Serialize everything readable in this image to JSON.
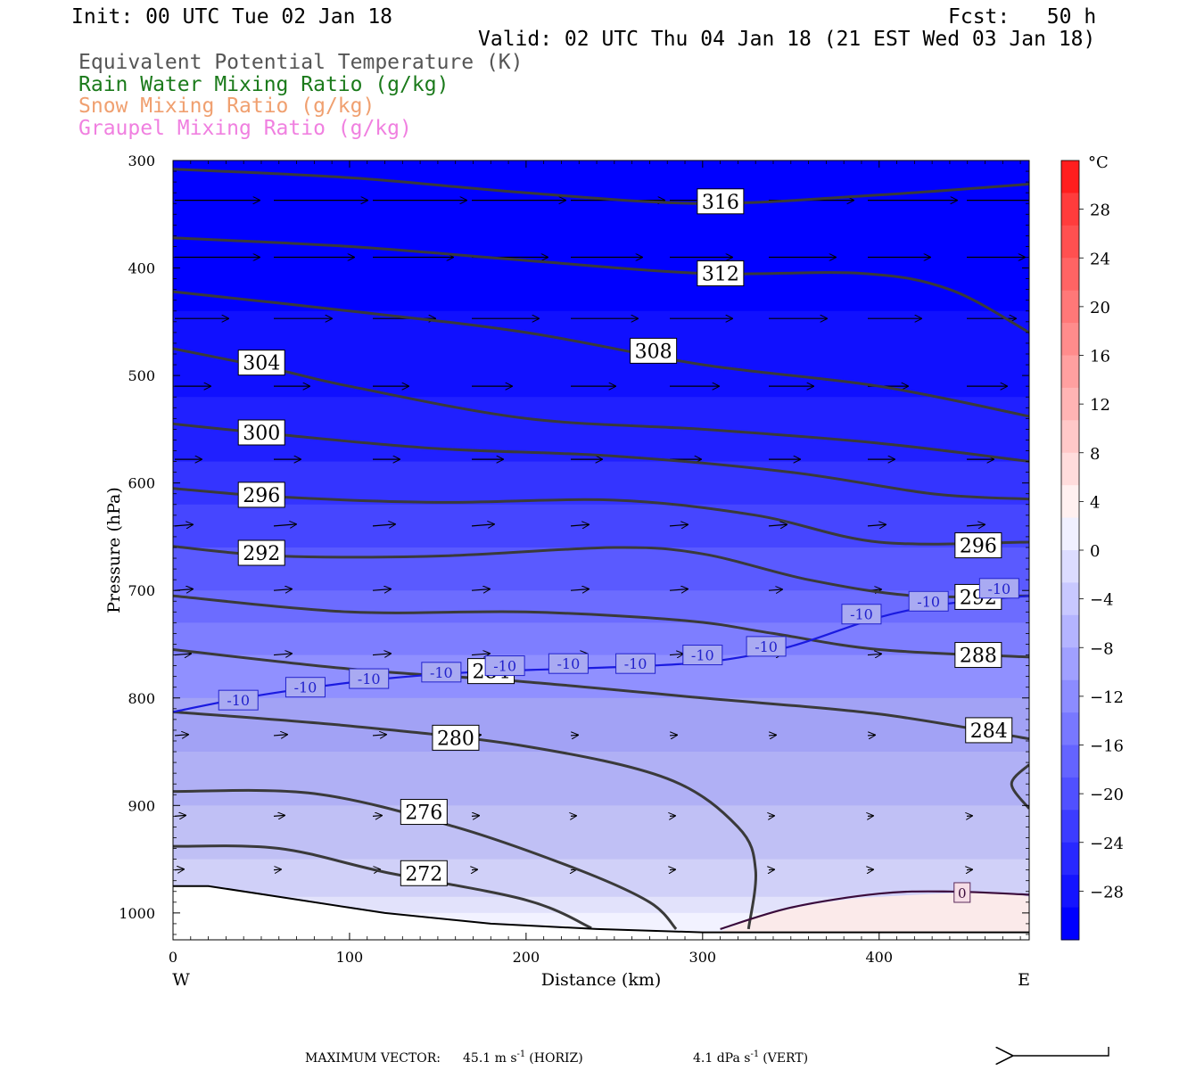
{
  "header": {
    "init": "Init: 00 UTC Tue 02 Jan 18",
    "fcst": "Fcst:   50 h",
    "valid": "Valid: 02 UTC Thu 04 Jan 18 (21 EST Wed 03 Jan 18)",
    "fields": [
      {
        "text": "Equivalent Potential Temperature (K)",
        "color": "#555555"
      },
      {
        "text": "Rain Water Mixing Ratio (g/kg)",
        "color": "#1b7a1b"
      },
      {
        "text": "Snow Mixing Ratio (g/kg)",
        "color": "#f0a070"
      },
      {
        "text": "Graupel Mixing Ratio (g/kg)",
        "color": "#f080e0"
      }
    ]
  },
  "chart_data": {
    "type": "cross-section",
    "xlabel": "Distance (km)",
    "ylabel": "Pressure (hPa)",
    "xlim": [
      0,
      485
    ],
    "ylim": [
      1025,
      300
    ],
    "x_ticks": [
      0,
      100,
      200,
      300,
      400
    ],
    "y_ticks": [
      300,
      400,
      500,
      600,
      700,
      800,
      900,
      1000
    ],
    "x_left_label": "W",
    "x_right_label": "E",
    "theta_e_contours": [
      {
        "value": "316",
        "label_at": [
          298,
          338
        ],
        "points": [
          [
            0,
            308
          ],
          [
            100,
            316
          ],
          [
            200,
            330
          ],
          [
            300,
            340
          ],
          [
            400,
            332
          ],
          [
            485,
            322
          ]
        ]
      },
      {
        "value": "312",
        "label_at": [
          298,
          405
        ],
        "points": [
          [
            0,
            372
          ],
          [
            100,
            380
          ],
          [
            200,
            393
          ],
          [
            300,
            405
          ],
          [
            390,
            405
          ],
          [
            440,
            420
          ],
          [
            485,
            460
          ]
        ]
      },
      {
        "value": "308",
        "label_at": [
          260,
          477
        ],
        "points": [
          [
            0,
            422
          ],
          [
            100,
            440
          ],
          [
            200,
            460
          ],
          [
            300,
            490
          ],
          [
            400,
            510
          ],
          [
            485,
            538
          ]
        ]
      },
      {
        "value": "304",
        "label_at": [
          38,
          488
        ],
        "points": [
          [
            0,
            475
          ],
          [
            60,
            495
          ],
          [
            100,
            510
          ],
          [
            200,
            540
          ],
          [
            300,
            550
          ],
          [
            400,
            563
          ],
          [
            485,
            580
          ]
        ]
      },
      {
        "value": "300",
        "label_at": [
          38,
          553
        ],
        "points": [
          [
            0,
            545
          ],
          [
            60,
            555
          ],
          [
            150,
            568
          ],
          [
            250,
            575
          ],
          [
            350,
            590
          ],
          [
            430,
            610
          ],
          [
            485,
            615
          ]
        ]
      },
      {
        "value": "296",
        "label_at": [
          38,
          611
        ],
        "points": [
          [
            0,
            605
          ],
          [
            60,
            613
          ],
          [
            150,
            618
          ],
          [
            250,
            616
          ],
          [
            330,
            630
          ],
          [
            400,
            655
          ],
          [
            485,
            655
          ]
        ]
      },
      {
        "value": "296",
        "label_at": [
          444,
          658
        ],
        "points": []
      },
      {
        "value": "292",
        "label_at": [
          38,
          665
        ],
        "points": [
          [
            0,
            659
          ],
          [
            60,
            668
          ],
          [
            150,
            668
          ],
          [
            250,
            660
          ],
          [
            300,
            666
          ],
          [
            360,
            690
          ],
          [
            420,
            705
          ],
          [
            485,
            705
          ]
        ]
      },
      {
        "value": "292",
        "label_at": [
          444,
          706
        ],
        "points": []
      },
      {
        "value": "288",
        "label_at": [
          444,
          760
        ],
        "points": [
          [
            0,
            705
          ],
          [
            100,
            720
          ],
          [
            200,
            720
          ],
          [
            290,
            728
          ],
          [
            340,
            740
          ],
          [
            400,
            755
          ],
          [
            485,
            762
          ]
        ]
      },
      {
        "value": "284",
        "label_at": [
          168,
          775
        ],
        "points": [
          [
            0,
            755
          ],
          [
            100,
            773
          ],
          [
            200,
            785
          ],
          [
            300,
            800
          ],
          [
            400,
            815
          ],
          [
            485,
            838
          ]
        ]
      },
      {
        "value": "284",
        "label_at": [
          450,
          830
        ],
        "points": []
      },
      {
        "value": "280",
        "label_at": [
          148,
          837
        ],
        "points": [
          [
            0,
            813
          ],
          [
            100,
            826
          ],
          [
            200,
            845
          ],
          [
            280,
            875
          ],
          [
            320,
            920
          ],
          [
            330,
            960
          ],
          [
            326,
            1015
          ]
        ]
      },
      {
        "value": "276",
        "label_at": [
          130,
          906
        ],
        "points": [
          [
            0,
            887
          ],
          [
            80,
            889
          ],
          [
            160,
            920
          ],
          [
            230,
            960
          ],
          [
            270,
            990
          ],
          [
            285,
            1015
          ]
        ]
      },
      {
        "value": "272",
        "label_at": [
          130,
          963
        ],
        "points": [
          [
            0,
            938
          ],
          [
            60,
            940
          ],
          [
            120,
            962
          ],
          [
            200,
            988
          ],
          [
            237,
            1014
          ]
        ]
      }
    ],
    "temperature_contours": [
      {
        "value": "-10",
        "points": [
          [
            0,
            813
          ],
          [
            40,
            800
          ],
          [
            80,
            790
          ],
          [
            120,
            782
          ],
          [
            170,
            776
          ],
          [
            220,
            773
          ],
          [
            270,
            770
          ],
          [
            310,
            765
          ],
          [
            350,
            752
          ],
          [
            400,
            725
          ],
          [
            440,
            712
          ],
          [
            485,
            705
          ]
        ]
      },
      {
        "value": "0",
        "points": [
          [
            310,
            1015
          ],
          [
            350,
            995
          ],
          [
            400,
            982
          ],
          [
            440,
            980
          ],
          [
            485,
            983
          ]
        ]
      }
    ],
    "minus10_labels": [
      [
        37,
        802
      ],
      [
        75,
        790
      ],
      [
        111,
        782
      ],
      [
        152,
        776
      ],
      [
        188,
        770
      ],
      [
        224,
        768
      ],
      [
        262,
        768
      ],
      [
        300,
        760
      ],
      [
        336,
        752
      ],
      [
        390,
        722
      ],
      [
        428,
        710
      ],
      [
        468,
        698
      ]
    ],
    "zero_label_at": [
      447,
      981
    ],
    "colorbar": {
      "unit": "°C",
      "labels": [
        "28",
        "24",
        "20",
        "16",
        "12",
        "8",
        "4",
        "0",
        "−4",
        "−8",
        "−12",
        "−16",
        "−20",
        "−24",
        "−28"
      ],
      "colors": [
        "#ff1e1e",
        "#ff3c3c",
        "#ff5050",
        "#ff6464",
        "#ff7878",
        "#ff8c8c",
        "#ffa0a0",
        "#ffb4b4",
        "#ffc8c8",
        "#ffdcdc",
        "#fff0f0",
        "#f0f0ff",
        "#dcdcff",
        "#c8c8ff",
        "#b4b4ff",
        "#a0a0ff",
        "#8c8cff",
        "#7878ff",
        "#6464ff",
        "#5050ff",
        "#3c3cff",
        "#2828ff",
        "#1414ff",
        "#0000ff"
      ]
    }
  },
  "footer": {
    "max_vector_label": "MAXIMUM VECTOR:",
    "horiz": "45.1 m s",
    "horiz_exp": "-1",
    "horiz_tag": "(HORIZ)",
    "vert": "4.1 dPa s",
    "vert_exp": "-1",
    "vert_tag": "(VERT)"
  }
}
